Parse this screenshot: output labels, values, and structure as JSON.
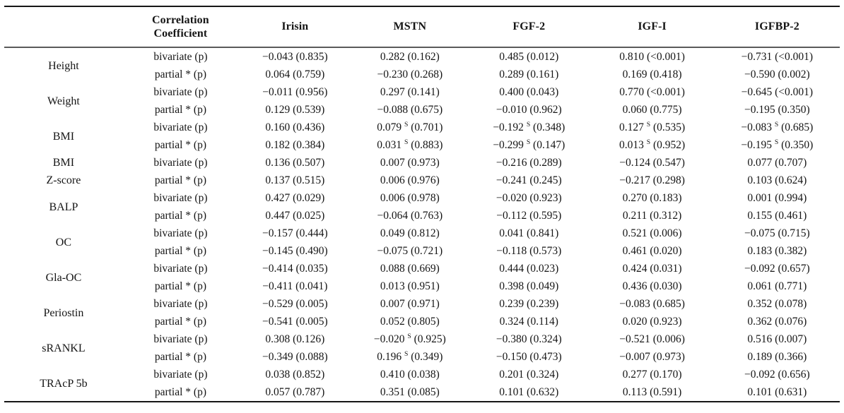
{
  "table": {
    "corr_header": "Correlation Coefficient",
    "markers": [
      "Irisin",
      "MSTN",
      "FGF-2",
      "IGF-I",
      "IGFBP-2"
    ],
    "row_types": [
      "bivariate (p)",
      "partial * (p)"
    ],
    "superscript_marker": "S",
    "groups": [
      {
        "label": "Height",
        "rows": [
          [
            "−0.043 (0.835)",
            "0.282 (0.162)",
            "0.485 (0.012)",
            "0.810 (<0.001)",
            "−0.731 (<0.001)"
          ],
          [
            "0.064 (0.759)",
            "−0.230 (0.268)",
            "0.289 (0.161)",
            "0.169 (0.418)",
            "−0.590 (0.002)"
          ]
        ]
      },
      {
        "label": "Weight",
        "rows": [
          [
            "−0.011 (0.956)",
            "0.297 (0.141)",
            "0.400 (0.043)",
            "0.770 (<0.001)",
            "−0.645 (<0.001)"
          ],
          [
            "0.129 (0.539)",
            "−0.088 (0.675)",
            "−0.010 (0.962)",
            "0.060 (0.775)",
            "−0.195 (0.350)"
          ]
        ]
      },
      {
        "label": "BMI",
        "rows": [
          [
            "0.160 (0.436)",
            "0.079 ^S (0.701)",
            "−0.192 ^S (0.348)",
            "0.127 ^S (0.535)",
            "−0.083 ^S (0.685)"
          ],
          [
            "0.182 (0.384)",
            "0.031 ^S (0.883)",
            "−0.299 ^S (0.147)",
            "0.013 ^S (0.952)",
            "−0.195 ^S (0.350)"
          ]
        ]
      },
      {
        "label": "BMI\nZ-score",
        "rows": [
          [
            "0.136 (0.507)",
            "0.007 (0.973)",
            "−0.216 (0.289)",
            "−0.124 (0.547)",
            "0.077 (0.707)"
          ],
          [
            "0.137 (0.515)",
            "0.006 (0.976)",
            "−0.241 (0.245)",
            "−0.217 (0.298)",
            "0.103 (0.624)"
          ]
        ]
      },
      {
        "label": "BALP",
        "rows": [
          [
            "0.427 (0.029)",
            "0.006 (0.978)",
            "−0.020 (0.923)",
            "0.270 (0.183)",
            "0.001 (0.994)"
          ],
          [
            "0.447 (0.025)",
            "−0.064 (0.763)",
            "−0.112 (0.595)",
            "0.211 (0.312)",
            "0.155 (0.461)"
          ]
        ]
      },
      {
        "label": "OC",
        "rows": [
          [
            "−0.157 (0.444)",
            "0.049 (0.812)",
            "0.041 (0.841)",
            "0.521 (0.006)",
            "−0.075 (0.715)"
          ],
          [
            "−0.145 (0.490)",
            "−0.075 (0.721)",
            "−0.118 (0.573)",
            "0.461 (0.020)",
            "0.183 (0.382)"
          ]
        ]
      },
      {
        "label": "Gla-OC",
        "rows": [
          [
            "−0.414 (0.035)",
            "0.088 (0.669)",
            "0.444 (0.023)",
            "0.424 (0.031)",
            "−0.092 (0.657)"
          ],
          [
            "−0.411 (0.041)",
            "0.013 (0.951)",
            "0.398 (0.049)",
            "0.436 (0.030)",
            "0.061 (0.771)"
          ]
        ]
      },
      {
        "label": "Periostin",
        "rows": [
          [
            "−0.529 (0.005)",
            "0.007 (0.971)",
            "0.239 (0.239)",
            "−0.083 (0.685)",
            "0.352 (0.078)"
          ],
          [
            "−0.541 (0.005)",
            "0.052 (0.805)",
            "0.324 (0.114)",
            "0.020 (0.923)",
            "0.362 (0.076)"
          ]
        ]
      },
      {
        "label": "sRANKL",
        "rows": [
          [
            "0.308 (0.126)",
            "−0.020 ^S (0.925)",
            "−0.380 (0.324)",
            "−0.521 (0.006)",
            "0.516 (0.007)"
          ],
          [
            "−0.349 (0.088)",
            "0.196 ^S (0.349)",
            "−0.150 (0.473)",
            "−0.007 (0.973)",
            "0.189 (0.366)"
          ]
        ]
      },
      {
        "label": "TRAcP 5b",
        "rows": [
          [
            "0.038 (0.852)",
            "0.410 (0.038)",
            "0.201 (0.324)",
            "0.277 (0.170)",
            "−0.092 (0.656)"
          ],
          [
            "0.057 (0.787)",
            "0.351 (0.085)",
            "0.101 (0.632)",
            "0.113 (0.591)",
            "0.101 (0.631)"
          ]
        ]
      }
    ]
  }
}
